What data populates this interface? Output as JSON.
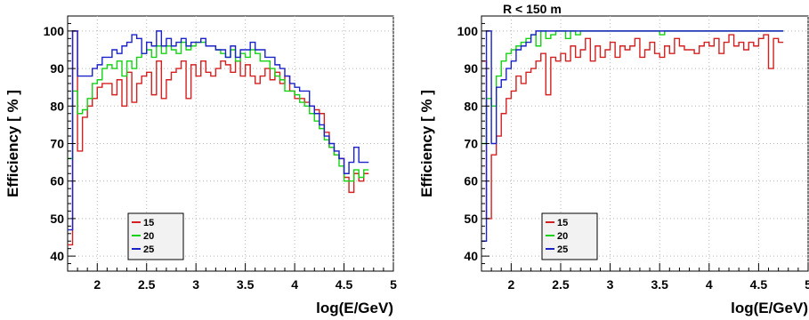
{
  "colors": {
    "s15": "#d42020",
    "s20": "#14d214",
    "s25": "#1a22c8",
    "annotation": "#33dd33",
    "grid": "#b4b4b4",
    "legend_bg": "#f2f2f2"
  },
  "chart_data": [
    {
      "type": "line",
      "drawstyle": "steps",
      "title": "",
      "xlabel": "log(E/GeV)",
      "ylabel": "Efficiency [ % ]",
      "xlim": [
        1.7,
        5.0
      ],
      "ylim": [
        36,
        104
      ],
      "xticks": [
        "2",
        "2.5",
        "3",
        "3.5",
        "4",
        "4.5",
        "5"
      ],
      "yticks": [
        "40",
        "50",
        "60",
        "70",
        "80",
        "90",
        "100"
      ],
      "grid": true,
      "legend_position": "bottom-left",
      "x_start": 1.7,
      "bin_width": 0.05,
      "series": [
        {
          "name": "15",
          "color": "#d42020",
          "values": [
            43,
            100,
            68,
            77,
            80,
            82,
            85,
            86,
            86,
            83,
            87,
            80,
            89,
            81,
            86,
            88,
            89,
            83,
            92,
            82,
            87,
            89,
            90,
            92,
            82,
            91,
            88,
            92,
            89,
            88,
            90,
            92,
            91,
            89,
            92,
            88,
            91,
            88,
            86,
            88,
            90,
            87,
            89,
            86,
            88,
            84,
            82,
            82,
            81,
            80,
            79,
            78,
            73,
            69,
            67,
            66,
            61,
            57,
            62,
            60,
            62
          ]
        },
        {
          "name": "20",
          "color": "#14d214",
          "values": [
            66,
            84,
            78,
            79,
            82,
            86,
            87,
            90,
            91,
            90,
            92,
            88,
            92,
            90,
            93,
            94,
            95,
            93,
            96,
            94,
            96,
            95,
            94,
            97,
            95,
            96,
            97,
            97,
            96,
            96,
            95,
            94,
            93,
            95,
            92,
            94,
            93,
            95,
            94,
            92,
            92,
            90,
            88,
            87,
            84,
            84,
            83,
            81,
            80,
            78,
            76,
            74,
            71,
            69,
            67,
            64,
            60,
            60,
            63,
            61,
            63
          ]
        },
        {
          "name": "25",
          "color": "#1a22c8",
          "values": [
            47,
            100,
            88,
            88,
            88,
            90,
            91,
            93,
            93,
            95,
            94,
            96,
            97,
            99,
            98,
            94,
            97,
            96,
            100,
            96,
            98,
            96,
            97,
            98,
            96,
            97,
            97,
            98,
            96,
            96,
            95,
            95,
            93,
            96,
            93,
            95,
            95,
            97,
            95,
            95,
            93,
            93,
            91,
            90,
            88,
            86,
            85,
            84,
            84,
            80,
            78,
            75,
            72,
            70,
            68,
            66,
            62,
            65,
            69,
            65,
            65
          ]
        }
      ]
    },
    {
      "type": "line",
      "drawstyle": "steps",
      "title": "",
      "annotation": "R < 150 m",
      "xlabel": "log(E/GeV)",
      "ylabel": "Efficiency [ % ]",
      "xlim": [
        1.7,
        5.0
      ],
      "ylim": [
        36,
        104
      ],
      "xticks": [
        "2",
        "2.5",
        "3",
        "3.5",
        "4",
        "4.5",
        "5"
      ],
      "yticks": [
        "40",
        "50",
        "60",
        "70",
        "80",
        "90",
        "100"
      ],
      "grid": true,
      "legend_position": "bottom-left",
      "x_start": 1.7,
      "bin_width": 0.05,
      "series": [
        {
          "name": "15",
          "color": "#d42020",
          "values": [
            92,
            50,
            67,
            72,
            78,
            82,
            84,
            88,
            86,
            89,
            90,
            92,
            94,
            83,
            93,
            92,
            94,
            92,
            96,
            93,
            95,
            98,
            92,
            96,
            93,
            95,
            97,
            93,
            96,
            95,
            96,
            98,
            93,
            95,
            97,
            94,
            93,
            96,
            94,
            98,
            96,
            95,
            95,
            94,
            96,
            97,
            96,
            98,
            94,
            97,
            99,
            96,
            97,
            95,
            97,
            96,
            98,
            99,
            90,
            98,
            97
          ]
        },
        {
          "name": "20",
          "color": "#14d214",
          "values": [
            70,
            82,
            80,
            88,
            92,
            94,
            95,
            96,
            97,
            98,
            99,
            96,
            100,
            98,
            99,
            100,
            100,
            98,
            100,
            99,
            100,
            100,
            100,
            100,
            100,
            100,
            100,
            100,
            100,
            100,
            100,
            100,
            100,
            100,
            100,
            100,
            99,
            100,
            100,
            100,
            100,
            100,
            100,
            100,
            100,
            100,
            100,
            100,
            100,
            100,
            100,
            100,
            100,
            100,
            100,
            100,
            100,
            100,
            100,
            100,
            100
          ]
        },
        {
          "name": "25",
          "color": "#1a22c8",
          "values": [
            44,
            100,
            70,
            85,
            87,
            90,
            92,
            95,
            96,
            97,
            99,
            100,
            100,
            100,
            100,
            100,
            100,
            100,
            100,
            100,
            100,
            100,
            100,
            100,
            100,
            100,
            100,
            100,
            100,
            100,
            100,
            100,
            100,
            100,
            100,
            100,
            100,
            100,
            100,
            100,
            100,
            100,
            100,
            100,
            100,
            100,
            100,
            100,
            100,
            100,
            100,
            100,
            100,
            100,
            100,
            100,
            100,
            100,
            100,
            100,
            100
          ]
        }
      ]
    }
  ]
}
